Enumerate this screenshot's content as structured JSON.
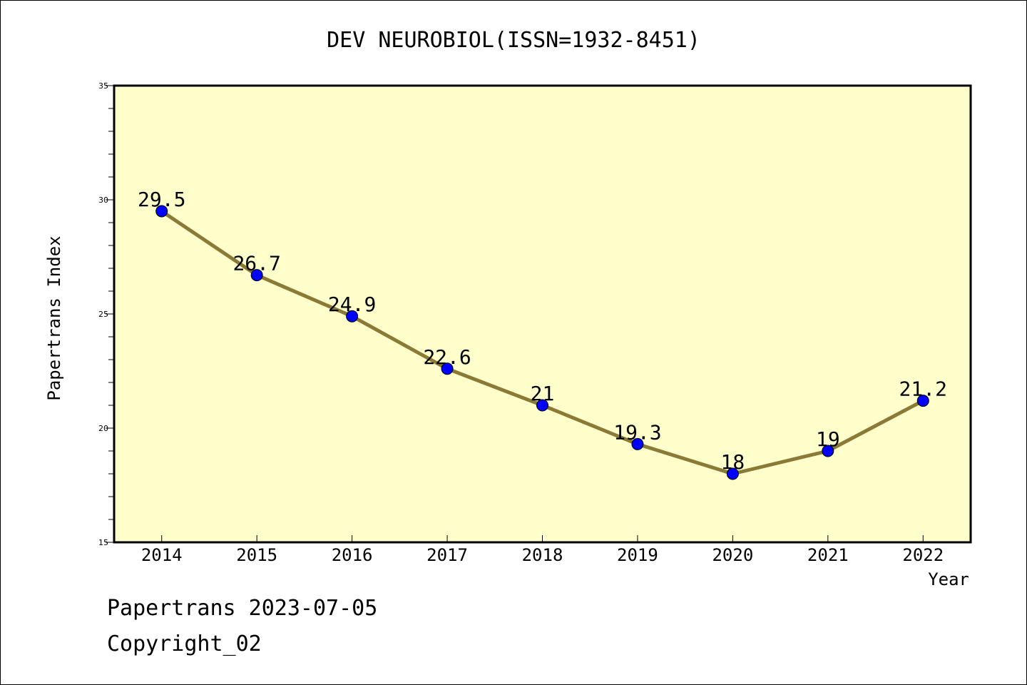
{
  "chart_data": {
    "type": "line",
    "title": "DEV NEUROBIOL(ISSN=1932-8451)",
    "xlabel": "Year",
    "ylabel": "Papertrans Index",
    "x": [
      2014,
      2015,
      2016,
      2017,
      2018,
      2019,
      2020,
      2021,
      2022
    ],
    "values": [
      29.5,
      26.7,
      24.9,
      22.6,
      21,
      19.3,
      18,
      19,
      21.2
    ],
    "data_labels": [
      "29.5",
      "26.7",
      "24.9",
      "22.6",
      "21",
      "19.3",
      "18",
      "19",
      "21.2"
    ],
    "x_tick_labels": [
      "2014",
      "2015",
      "2016",
      "2017",
      "2018",
      "2019",
      "2020",
      "2021",
      "2022"
    ],
    "y_tick_labels": [
      "15",
      "20",
      "25",
      "30",
      "35"
    ],
    "y_ticks": [
      15,
      20,
      25,
      30,
      35
    ],
    "ylim": [
      15,
      35
    ],
    "xlim": [
      2013.5,
      2022.5
    ],
    "grid": false,
    "colors": {
      "plot_background": "#ffffcc",
      "line": "#8b7a35",
      "marker": "#0000ff"
    }
  },
  "footer": {
    "stamp": "Papertrans 2023-07-05",
    "copyright": "Copyright_02"
  }
}
